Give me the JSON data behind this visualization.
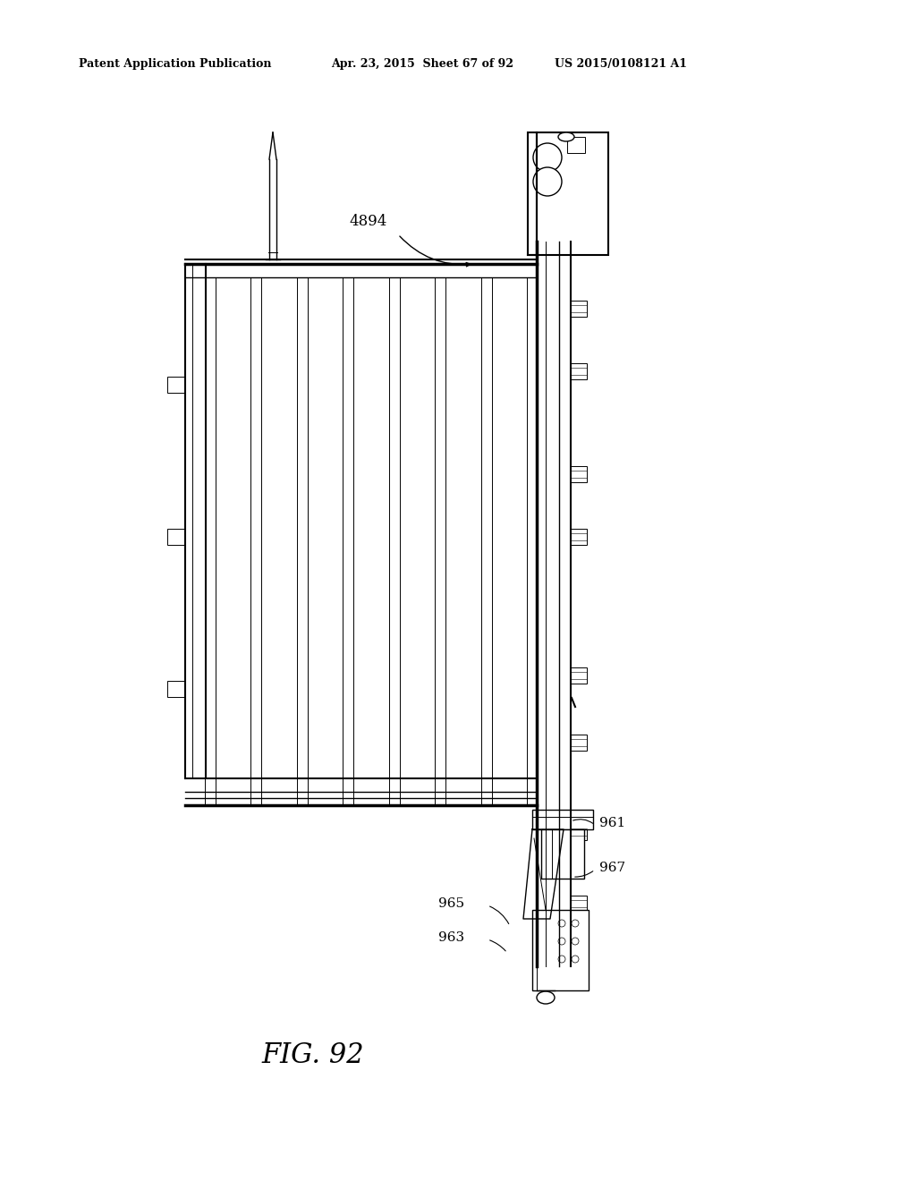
{
  "bg_color": "#ffffff",
  "line_color": "#000000",
  "header_left": "Patent Application Publication",
  "header_mid": "Apr. 23, 2015  Sheet 67 of 92",
  "header_right": "US 2015/0108121 A1",
  "fig_label": "FIG. 92",
  "label_4894": "4894",
  "label_961": "961",
  "label_965": "965",
  "label_963": "963",
  "label_967": "967"
}
